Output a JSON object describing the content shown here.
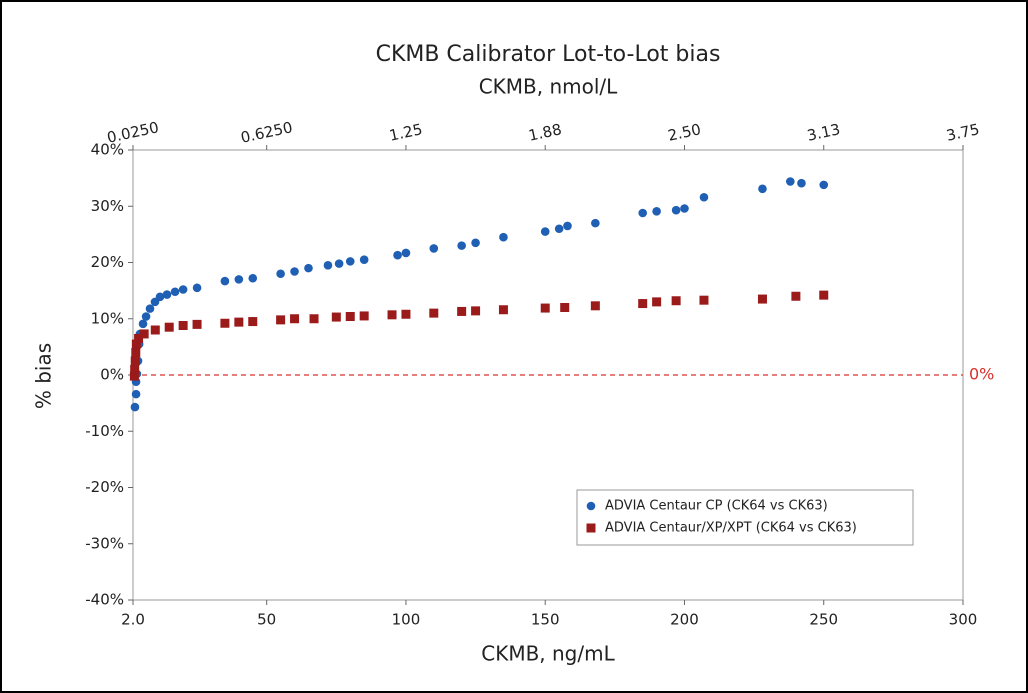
{
  "chart_data": {
    "type": "scatter",
    "title": "CKMB Calibrator Lot-to-Lot bias",
    "subtitle": "CKMB, nmol/L",
    "xlabel": "CKMB, ng/mL",
    "ylabel": "% bias",
    "xlim": [
      2,
      300
    ],
    "xticks": [
      {
        "value": 2,
        "label": "2.0"
      },
      50,
      100,
      150,
      200,
      250,
      300
    ],
    "x2lim": [
      0.025,
      3.75
    ],
    "x2ticks": [
      {
        "value": 0.025,
        "label": "0.0250"
      },
      {
        "value": 0.625,
        "label": "0.6250"
      },
      1.25,
      {
        "value": 1.875,
        "label": "1.88"
      },
      {
        "value": 2.5,
        "label": "2.50"
      },
      {
        "value": 3.125,
        "label": "3.13"
      },
      3.75
    ],
    "ylim": [
      -40,
      40
    ],
    "yticks": [
      {
        "value": -40,
        "label": "-40%"
      },
      {
        "value": -30,
        "label": "-30%"
      },
      {
        "value": -20,
        "label": "-20%"
      },
      {
        "value": -10,
        "label": "-10%"
      },
      {
        "value": 0,
        "label": "0%"
      },
      {
        "value": 10,
        "label": "10%"
      },
      {
        "value": 20,
        "label": "20%"
      },
      {
        "value": 30,
        "label": "30%"
      },
      {
        "value": 40,
        "label": "40%"
      }
    ],
    "reference_line": {
      "value": 0,
      "label": "0%",
      "color": "#d9302c"
    },
    "grid": false,
    "legend": "lower right",
    "series": [
      {
        "name": "ADVIA Centaur CP (CK64 vs CK63)",
        "color": "#1f5fb4",
        "marker": "circle",
        "x": [
          2.7,
          3.1,
          3.1,
          3.4,
          3.8,
          4.2,
          4.5,
          5.6,
          6.7,
          8.1,
          9.9,
          11.7,
          14.2,
          17.1,
          20,
          25,
          35,
          40,
          45,
          55,
          60,
          65,
          72,
          76,
          80,
          85,
          97,
          100,
          110,
          120,
          125,
          135,
          150,
          155,
          158,
          168,
          185,
          190,
          197,
          200,
          207,
          228,
          238,
          242,
          250
        ],
        "values": [
          -5.7,
          -3.4,
          -1.2,
          0.2,
          2.5,
          5.5,
          7.3,
          9.1,
          10.4,
          11.8,
          13.0,
          13.9,
          14.3,
          14.8,
          15.2,
          15.5,
          16.7,
          17.0,
          17.2,
          18.0,
          18.4,
          19.0,
          19.5,
          19.8,
          20.2,
          20.5,
          21.3,
          21.7,
          22.5,
          23.0,
          23.5,
          24.5,
          25.5,
          26.0,
          26.5,
          27.0,
          28.8,
          29.1,
          29.3,
          29.6,
          31.6,
          33.1,
          34.4,
          34.1,
          33.8
        ]
      },
      {
        "name": "ADVIA Centaur/XP/XPT (CK64 vs CK63)",
        "color": "#9b1b1b",
        "marker": "square",
        "x": [
          2.5,
          2.6,
          2.8,
          3.0,
          3.2,
          4,
          6,
          10,
          15,
          20,
          25,
          35,
          40,
          45,
          55,
          60,
          67,
          75,
          80,
          85,
          95,
          100,
          110,
          120,
          125,
          135,
          150,
          157,
          168,
          185,
          190,
          197,
          207,
          228,
          240,
          250
        ],
        "values": [
          -0.2,
          1.0,
          2.5,
          4.0,
          5.5,
          6.5,
          7.3,
          8.0,
          8.5,
          8.8,
          9.0,
          9.2,
          9.4,
          9.5,
          9.8,
          10.0,
          10.0,
          10.3,
          10.4,
          10.5,
          10.7,
          10.8,
          11.0,
          11.3,
          11.4,
          11.6,
          11.9,
          12.0,
          12.3,
          12.7,
          13.0,
          13.2,
          13.3,
          13.5,
          14.0,
          14.2
        ]
      }
    ]
  }
}
